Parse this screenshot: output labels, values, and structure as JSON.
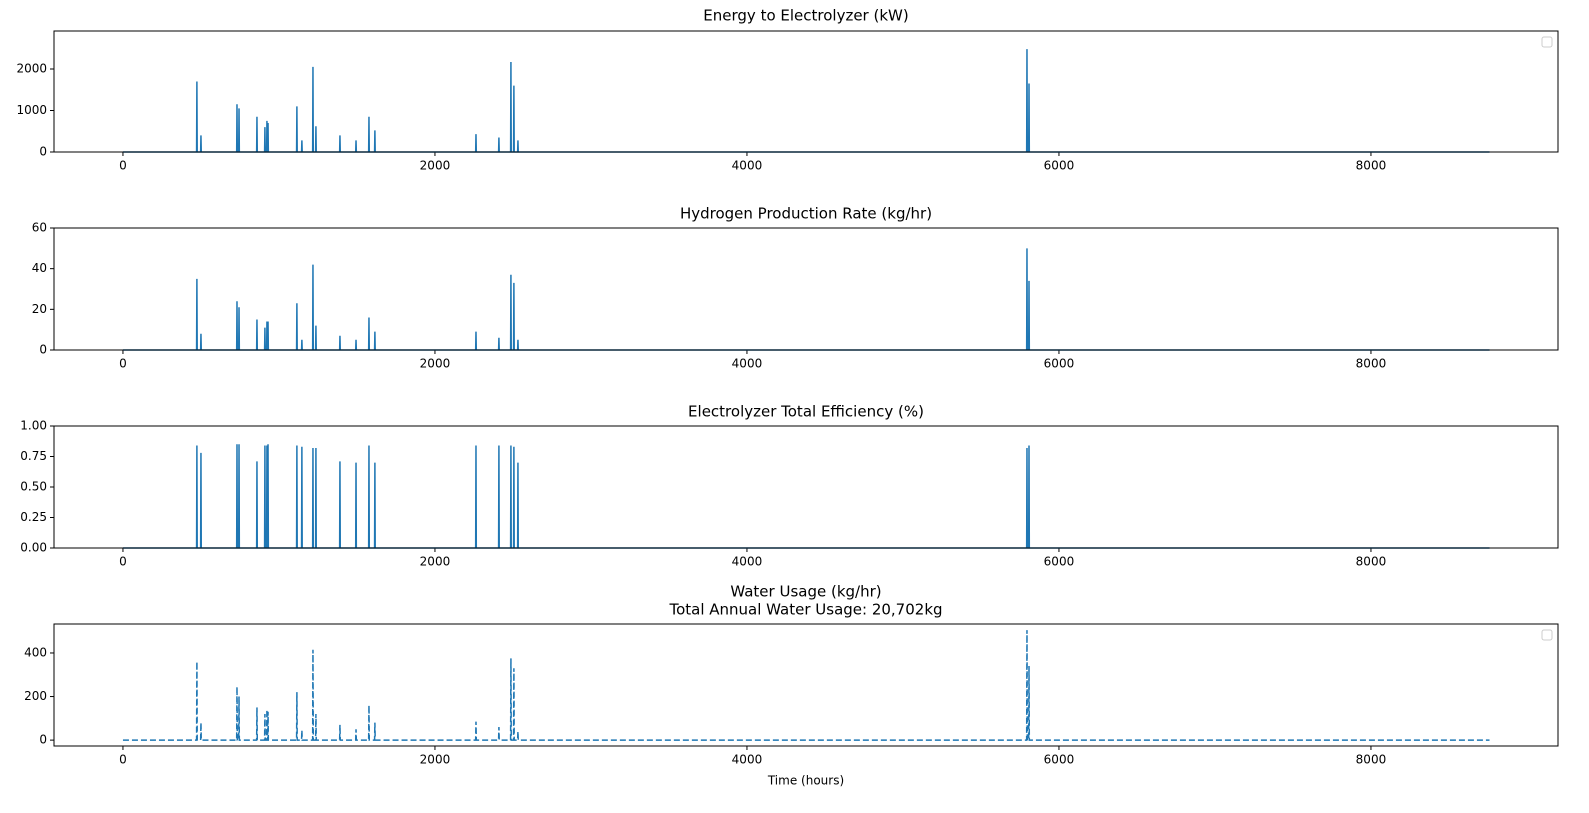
{
  "chart_data": [
    {
      "type": "line",
      "title": "Energy to Electrolyzer (kW)",
      "x": [
        0,
        472,
        474,
        476,
        498,
        500,
        502,
        729,
        731,
        733,
        742,
        744,
        746,
        857,
        859,
        861,
        908,
        910,
        912,
        921,
        923,
        925,
        928,
        930,
        932,
        1113,
        1115,
        1117,
        1145,
        1147,
        1149,
        1216,
        1218,
        1220,
        1235,
        1237,
        1239,
        1389,
        1391,
        1393,
        1492,
        1494,
        1496,
        1575,
        1577,
        1579,
        1613,
        1615,
        1617,
        2261,
        2263,
        2265,
        2408,
        2410,
        2412,
        2485,
        2487,
        2489,
        2504,
        2506,
        2508,
        2530,
        2532,
        2534,
        5793,
        5795,
        5797,
        5806,
        5808,
        5810,
        8760
      ],
      "series": [
        {
          "color": "#1f77b4",
          "values": [
            0,
            0,
            1700,
            0,
            0,
            400,
            0,
            0,
            1150,
            0,
            0,
            1050,
            0,
            0,
            850,
            0,
            0,
            600,
            0,
            0,
            750,
            0,
            0,
            700,
            0,
            0,
            1100,
            0,
            0,
            280,
            0,
            0,
            2050,
            0,
            0,
            620,
            0,
            0,
            400,
            0,
            0,
            280,
            0,
            0,
            850,
            0,
            0,
            520,
            0,
            0,
            430,
            0,
            0,
            350,
            0,
            0,
            2170,
            0,
            0,
            1600,
            0,
            0,
            280,
            0,
            0,
            2480,
            0,
            0,
            1650,
            0,
            0
          ]
        }
      ],
      "xlim": [
        -442,
        9199
      ],
      "xticks": [
        0,
        2000,
        4000,
        6000,
        8000
      ],
      "ylim": [
        0,
        2916
      ],
      "yticks": [
        0,
        1000,
        2000
      ],
      "legend": "upper right"
    },
    {
      "type": "line",
      "title": "Hydrogen Production Rate (kg/hr)",
      "x": [
        0,
        472,
        474,
        476,
        498,
        500,
        502,
        729,
        731,
        733,
        742,
        744,
        746,
        857,
        859,
        861,
        908,
        910,
        912,
        921,
        923,
        925,
        928,
        930,
        932,
        1113,
        1115,
        1117,
        1145,
        1147,
        1149,
        1216,
        1218,
        1220,
        1235,
        1237,
        1239,
        1389,
        1391,
        1393,
        1492,
        1494,
        1496,
        1575,
        1577,
        1579,
        1613,
        1615,
        1617,
        2261,
        2263,
        2265,
        2408,
        2410,
        2412,
        2485,
        2487,
        2489,
        2504,
        2506,
        2508,
        2530,
        2532,
        2534,
        5793,
        5795,
        5797,
        5806,
        5808,
        5810,
        8760
      ],
      "series": [
        {
          "color": "#1f77b4",
          "values": [
            0,
            0,
            35,
            0,
            0,
            8,
            0,
            0,
            24,
            0,
            0,
            21,
            0,
            0,
            15,
            0,
            0,
            11,
            0,
            0,
            14,
            0,
            0,
            14,
            0,
            0,
            23,
            0,
            0,
            5,
            0,
            0,
            42,
            0,
            0,
            12,
            0,
            0,
            7,
            0,
            0,
            5,
            0,
            0,
            16,
            0,
            0,
            9,
            0,
            0,
            9,
            0,
            0,
            6,
            0,
            0,
            37,
            0,
            0,
            33,
            0,
            0,
            5,
            0,
            0,
            50,
            0,
            0,
            34,
            0,
            0
          ]
        }
      ],
      "xlim": [
        -442,
        9199
      ],
      "xticks": [
        0,
        2000,
        4000,
        6000,
        8000
      ],
      "ylim": [
        0,
        60
      ],
      "yticks": [
        0,
        20,
        40,
        60
      ]
    },
    {
      "type": "line",
      "title": "Electrolyzer Total Efficiency (%)",
      "x": [
        0,
        472,
        474,
        476,
        498,
        500,
        502,
        729,
        731,
        733,
        742,
        744,
        746,
        857,
        859,
        861,
        908,
        910,
        912,
        921,
        923,
        925,
        928,
        930,
        932,
        1113,
        1115,
        1117,
        1145,
        1147,
        1149,
        1216,
        1218,
        1220,
        1235,
        1237,
        1239,
        1389,
        1391,
        1393,
        1492,
        1494,
        1496,
        1575,
        1577,
        1579,
        1613,
        1615,
        1617,
        2261,
        2263,
        2265,
        2408,
        2410,
        2412,
        2485,
        2487,
        2489,
        2504,
        2506,
        2508,
        2530,
        2532,
        2534,
        5793,
        5795,
        5797,
        5806,
        5808,
        5810,
        8760
      ],
      "series": [
        {
          "color": "#1f77b4",
          "values": [
            0,
            0,
            0.84,
            0,
            0,
            0.78,
            0,
            0,
            0.85,
            0,
            0,
            0.85,
            0,
            0,
            0.71,
            0,
            0,
            0.84,
            0,
            0,
            0.84,
            0,
            0,
            0.85,
            0,
            0,
            0.84,
            0,
            0,
            0.83,
            0,
            0,
            0.82,
            0,
            0,
            0.82,
            0,
            0,
            0.71,
            0,
            0,
            0.7,
            0,
            0,
            0.84,
            0,
            0,
            0.7,
            0,
            0,
            0.84,
            0,
            0,
            0.84,
            0,
            0,
            0.84,
            0,
            0,
            0.83,
            0,
            0,
            0.7,
            0,
            0,
            0.82,
            0,
            0,
            0.84,
            0,
            0
          ]
        }
      ],
      "xlim": [
        -442,
        9199
      ],
      "xticks": [
        0,
        2000,
        4000,
        6000,
        8000
      ],
      "ylim": [
        0,
        1
      ],
      "yticks": [
        {
          "value": 0,
          "label": "0.00"
        },
        {
          "value": 0.25,
          "label": "0.25"
        },
        {
          "value": 0.5,
          "label": "0.50"
        },
        {
          "value": 0.75,
          "label": "0.75"
        },
        {
          "value": 1,
          "label": "1.00"
        }
      ]
    },
    {
      "type": "line",
      "title": "Water Usage (kg/hr)",
      "subtitle": "Total Annual Water Usage: 20,702kg",
      "x_label": "Time (hours)",
      "x": [
        0,
        472,
        474,
        476,
        498,
        500,
        502,
        729,
        731,
        733,
        742,
        744,
        746,
        857,
        859,
        861,
        908,
        910,
        912,
        921,
        923,
        925,
        928,
        930,
        932,
        1113,
        1115,
        1117,
        1145,
        1147,
        1149,
        1216,
        1218,
        1220,
        1235,
        1237,
        1239,
        1389,
        1391,
        1393,
        1492,
        1494,
        1496,
        1575,
        1577,
        1579,
        1613,
        1615,
        1617,
        2261,
        2263,
        2265,
        2408,
        2410,
        2412,
        2485,
        2487,
        2489,
        2504,
        2506,
        2508,
        2530,
        2532,
        2534,
        5793,
        5795,
        5797,
        5806,
        5808,
        5810,
        8760
      ],
      "series": [
        {
          "color": "#1f77b4",
          "linestyle": "dashed",
          "values": [
            0,
            0,
            360,
            0,
            0,
            80,
            0,
            0,
            245,
            0,
            0,
            200,
            0,
            0,
            150,
            0,
            0,
            120,
            0,
            0,
            140,
            0,
            0,
            130,
            0,
            0,
            220,
            0,
            0,
            45,
            0,
            0,
            415,
            0,
            0,
            120,
            0,
            0,
            70,
            0,
            0,
            50,
            0,
            0,
            160,
            0,
            0,
            80,
            0,
            0,
            85,
            0,
            0,
            60,
            0,
            0,
            375,
            0,
            0,
            330,
            0,
            0,
            40,
            0,
            0,
            505,
            0,
            0,
            340,
            0,
            0
          ]
        }
      ],
      "xlim": [
        -442,
        9199
      ],
      "xticks": [
        0,
        2000,
        4000,
        6000,
        8000
      ],
      "ylim": [
        -27,
        533
      ],
      "yticks": [
        0,
        200,
        400
      ],
      "legend": "upper right"
    }
  ]
}
